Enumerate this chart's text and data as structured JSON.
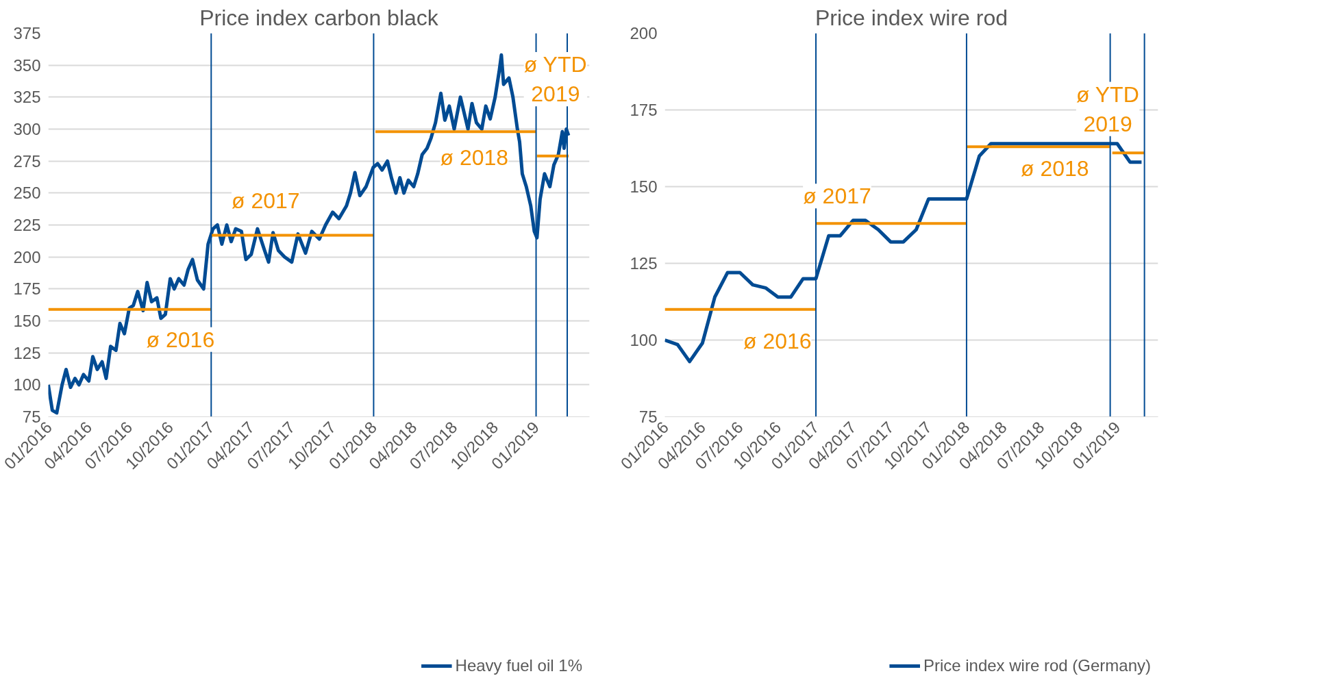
{
  "chart_data": [
    {
      "type": "line",
      "title": "Price index carbon black",
      "grid": "y",
      "legend": "bottom",
      "xlim": [
        "2016-01-01",
        "2019-05-01"
      ],
      "ylim": [
        75,
        375
      ],
      "yticks": [
        75,
        100,
        125,
        150,
        175,
        200,
        225,
        250,
        275,
        300,
        325,
        350,
        375
      ],
      "xticks": [
        {
          "value": "2016-01-01",
          "label": "01/2016"
        },
        {
          "value": "2016-04-01",
          "label": "04/2016"
        },
        {
          "value": "2016-07-01",
          "label": "07/2016"
        },
        {
          "value": "2016-10-01",
          "label": "10/2016"
        },
        {
          "value": "2017-01-01",
          "label": "01/2017"
        },
        {
          "value": "2017-04-01",
          "label": "04/2017"
        },
        {
          "value": "2017-07-01",
          "label": "07/2017"
        },
        {
          "value": "2017-10-01",
          "label": "10/2017"
        },
        {
          "value": "2018-01-01",
          "label": "01/2018"
        },
        {
          "value": "2018-04-01",
          "label": "04/2018"
        },
        {
          "value": "2018-07-01",
          "label": "07/2018"
        },
        {
          "value": "2018-10-01",
          "label": "10/2018"
        },
        {
          "value": "2019-01-01",
          "label": "01/2019"
        }
      ],
      "series": [
        {
          "name": "Heavy fuel oil 1%",
          "color": "#004b93",
          "x": [
            "2016-01-01",
            "2016-01-10",
            "2016-01-20",
            "2016-02-01",
            "2016-02-10",
            "2016-02-20",
            "2016-03-01",
            "2016-03-10",
            "2016-03-20",
            "2016-04-01",
            "2016-04-10",
            "2016-04-20",
            "2016-05-01",
            "2016-05-10",
            "2016-05-20",
            "2016-06-01",
            "2016-06-10",
            "2016-06-20",
            "2016-07-01",
            "2016-07-10",
            "2016-07-20",
            "2016-08-01",
            "2016-08-10",
            "2016-08-20",
            "2016-09-01",
            "2016-09-10",
            "2016-09-20",
            "2016-10-01",
            "2016-10-10",
            "2016-10-20",
            "2016-11-01",
            "2016-11-10",
            "2016-11-20",
            "2016-12-01",
            "2016-12-15",
            "2016-12-25",
            "2017-01-05",
            "2017-01-15",
            "2017-01-25",
            "2017-02-05",
            "2017-02-15",
            "2017-02-25",
            "2017-03-10",
            "2017-03-20",
            "2017-04-01",
            "2017-04-15",
            "2017-05-01",
            "2017-05-10",
            "2017-05-20",
            "2017-06-01",
            "2017-06-15",
            "2017-07-01",
            "2017-07-15",
            "2017-08-01",
            "2017-08-15",
            "2017-09-01",
            "2017-09-15",
            "2017-10-01",
            "2017-10-15",
            "2017-11-01",
            "2017-11-10",
            "2017-11-20",
            "2017-12-01",
            "2017-12-15",
            "2017-12-31",
            "2018-01-10",
            "2018-01-20",
            "2018-02-01",
            "2018-02-10",
            "2018-02-20",
            "2018-03-01",
            "2018-03-10",
            "2018-03-20",
            "2018-04-01",
            "2018-04-10",
            "2018-04-20",
            "2018-05-01",
            "2018-05-10",
            "2018-05-20",
            "2018-06-01",
            "2018-06-10",
            "2018-06-20",
            "2018-07-01",
            "2018-07-15",
            "2018-08-01",
            "2018-08-10",
            "2018-08-20",
            "2018-09-01",
            "2018-09-10",
            "2018-09-20",
            "2018-10-01",
            "2018-10-10",
            "2018-10-15",
            "2018-10-20",
            "2018-11-01",
            "2018-11-10",
            "2018-11-20",
            "2018-11-25",
            "2018-12-01",
            "2018-12-10",
            "2018-12-20",
            "2018-12-28",
            "2019-01-03",
            "2019-01-10",
            "2019-01-20",
            "2019-02-01",
            "2019-02-10",
            "2019-02-20",
            "2019-03-01",
            "2019-03-05",
            "2019-03-10",
            "2019-03-15"
          ],
          "values": [
            100,
            80,
            78,
            100,
            112,
            98,
            105,
            100,
            108,
            103,
            122,
            112,
            118,
            105,
            130,
            127,
            148,
            140,
            160,
            162,
            173,
            158,
            180,
            165,
            168,
            152,
            155,
            183,
            175,
            183,
            178,
            190,
            198,
            182,
            175,
            210,
            222,
            225,
            210,
            225,
            212,
            222,
            220,
            198,
            202,
            222,
            205,
            196,
            219,
            205,
            200,
            196,
            218,
            203,
            220,
            214,
            225,
            235,
            230,
            240,
            250,
            266,
            248,
            255,
            270,
            273,
            268,
            275,
            262,
            250,
            262,
            250,
            260,
            255,
            265,
            280,
            285,
            293,
            305,
            328,
            307,
            318,
            300,
            325,
            300,
            320,
            305,
            300,
            318,
            308,
            325,
            345,
            358,
            335,
            340,
            325,
            300,
            290,
            265,
            255,
            240,
            220,
            215,
            245,
            265,
            255,
            272,
            280,
            298,
            285,
            300,
            295
          ]
        },
        {
          "color": "#f39200",
          "x": [
            "2016-01-01",
            "2017-01-01"
          ],
          "values": [
            159,
            159
          ]
        },
        {
          "color": "#f39200",
          "x": [
            "2017-01-01",
            "2018-01-01"
          ],
          "values": [
            217,
            217
          ]
        },
        {
          "color": "#f39200",
          "x": [
            "2018-01-05",
            "2019-01-01"
          ],
          "values": [
            298,
            298
          ]
        },
        {
          "color": "#f39200",
          "x": [
            "2019-01-03",
            "2019-03-15"
          ],
          "values": [
            279,
            279
          ]
        }
      ],
      "ref_lines": [
        {
          "axis": "x",
          "value": "2017-01-01",
          "color": "#004b93"
        },
        {
          "axis": "x",
          "value": "2018-01-01",
          "color": "#004b93"
        },
        {
          "axis": "x",
          "value": "2019-01-01",
          "color": "#004b93"
        },
        {
          "axis": "x",
          "value": "2019-03-12",
          "color": "#004b93"
        }
      ],
      "annotations": [
        "ø 2016",
        "ø 2017",
        "ø 2018",
        "ø YTD\n2019"
      ]
    },
    {
      "type": "line",
      "title": "Price index wire rod",
      "grid": "y",
      "legend": "bottom",
      "xlim": [
        "2016-01-01",
        "2019-04-10"
      ],
      "ylim": [
        75,
        200
      ],
      "yticks": [
        75,
        100,
        125,
        150,
        175,
        200
      ],
      "xticks": [
        {
          "value": "2016-01-01",
          "label": "01/2016"
        },
        {
          "value": "2016-04-01",
          "label": "04/2016"
        },
        {
          "value": "2016-07-01",
          "label": "07/2016"
        },
        {
          "value": "2016-10-01",
          "label": "10/2016"
        },
        {
          "value": "2017-01-01",
          "label": "01/2017"
        },
        {
          "value": "2017-04-01",
          "label": "04/2017"
        },
        {
          "value": "2017-07-01",
          "label": "07/2017"
        },
        {
          "value": "2017-10-01",
          "label": "10/2017"
        },
        {
          "value": "2018-01-01",
          "label": "01/2018"
        },
        {
          "value": "2018-04-01",
          "label": "04/2018"
        },
        {
          "value": "2018-07-01",
          "label": "07/2018"
        },
        {
          "value": "2018-10-01",
          "label": "10/2018"
        },
        {
          "value": "2019-01-01",
          "label": "01/2019"
        }
      ],
      "series": [
        {
          "name": "Price index wire rod (Germany)",
          "color": "#004b93",
          "x": [
            "2016-01",
            "2016-02",
            "2016-03",
            "2016-04",
            "2016-05",
            "2016-06",
            "2016-07",
            "2016-08",
            "2016-09",
            "2016-10",
            "2016-11",
            "2016-12",
            "2017-01",
            "2017-02",
            "2017-03",
            "2017-04",
            "2017-05",
            "2017-06",
            "2017-07",
            "2017-08",
            "2017-09",
            "2017-10",
            "2017-11",
            "2017-12",
            "2018-01",
            "2018-02",
            "2018-03",
            "2018-04",
            "2018-05",
            "2018-06",
            "2018-07",
            "2018-08",
            "2018-09",
            "2018-10",
            "2018-11",
            "2018-12",
            "2019-01",
            "2019-02",
            "2019-03"
          ],
          "values": [
            100,
            98.5,
            93,
            99,
            114,
            122,
            122,
            118,
            117,
            114,
            114,
            120,
            120,
            134,
            134,
            139,
            139,
            136,
            132,
            132,
            136,
            146,
            146,
            146,
            146,
            160,
            164,
            164,
            164,
            164,
            164,
            164,
            164,
            164,
            164,
            164,
            164,
            158,
            158
          ]
        },
        {
          "color": "#f39200",
          "x": [
            "2016-01-01",
            "2017-01-01"
          ],
          "values": [
            110,
            110
          ]
        },
        {
          "color": "#f39200",
          "x": [
            "2017-01-01",
            "2018-01-01"
          ],
          "values": [
            138,
            138
          ]
        },
        {
          "color": "#f39200",
          "x": [
            "2018-01-01",
            "2018-12-15"
          ],
          "values": [
            163,
            163
          ]
        },
        {
          "color": "#f39200",
          "x": [
            "2018-12-20",
            "2019-03-08"
          ],
          "values": [
            161,
            161
          ]
        }
      ],
      "ref_lines": [
        {
          "axis": "x",
          "value": "2017-01-01",
          "color": "#004b93"
        },
        {
          "axis": "x",
          "value": "2018-01-01",
          "color": "#004b93"
        },
        {
          "axis": "x",
          "value": "2018-12-15",
          "color": "#004b93"
        },
        {
          "axis": "x",
          "value": "2019-03-08",
          "color": "#004b93"
        }
      ],
      "annotations": [
        "ø 2016",
        "ø 2017",
        "ø 2018",
        "ø YTD\n2019"
      ]
    }
  ]
}
